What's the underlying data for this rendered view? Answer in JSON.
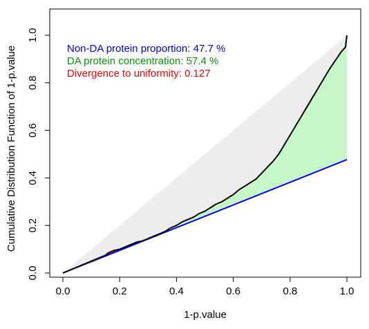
{
  "chart_data": {
    "type": "line",
    "xlabel": "1-p.value",
    "ylabel": "Cumulative Distribution Function of 1-p.value",
    "xlim": [
      0,
      1
    ],
    "ylim": [
      0,
      1
    ],
    "x_ticks": [
      "0.0",
      "0.2",
      "0.4",
      "0.6",
      "0.8",
      "1.0"
    ],
    "y_ticks": [
      "0.0",
      "0.2",
      "0.4",
      "0.6",
      "0.8",
      "1.0"
    ],
    "annotations": [
      {
        "text": "Non-DA protein proportion:  47.7 %",
        "color": "#0000ff"
      },
      {
        "text": "DA protein concentration:  57.4 %",
        "color": "#009900"
      },
      {
        "text": "Divergence to uniformity:  0.127",
        "color": "#ff0000"
      }
    ],
    "non_da_proportion": 0.477,
    "series": [
      {
        "color": "#000000",
        "x": [
          0.0,
          0.02,
          0.05,
          0.08,
          0.1,
          0.12,
          0.14,
          0.15,
          0.16,
          0.18,
          0.2,
          0.22,
          0.24,
          0.26,
          0.28,
          0.3,
          0.32,
          0.34,
          0.36,
          0.38,
          0.4,
          0.42,
          0.44,
          0.46,
          0.48,
          0.5,
          0.52,
          0.54,
          0.56,
          0.58,
          0.6,
          0.62,
          0.64,
          0.66,
          0.68,
          0.7,
          0.72,
          0.74,
          0.76,
          0.78,
          0.8,
          0.82,
          0.84,
          0.86,
          0.88,
          0.9,
          0.92,
          0.94,
          0.96,
          0.98,
          0.995,
          1.0
        ],
        "y": [
          0.0,
          0.01,
          0.025,
          0.04,
          0.05,
          0.06,
          0.07,
          0.075,
          0.085,
          0.095,
          0.1,
          0.11,
          0.12,
          0.13,
          0.135,
          0.145,
          0.155,
          0.165,
          0.175,
          0.19,
          0.2,
          0.215,
          0.225,
          0.235,
          0.25,
          0.26,
          0.275,
          0.29,
          0.3,
          0.315,
          0.33,
          0.35,
          0.365,
          0.38,
          0.395,
          0.42,
          0.445,
          0.47,
          0.5,
          0.54,
          0.58,
          0.62,
          0.66,
          0.7,
          0.74,
          0.78,
          0.82,
          0.86,
          0.895,
          0.93,
          0.95,
          1.0
        ]
      },
      {
        "color": "#0000ff",
        "x": [
          0,
          1
        ],
        "y": [
          0,
          0.477
        ]
      }
    ],
    "divergence_region": {
      "color": "#ff0000",
      "x_from": 0.15,
      "x_to": 0.27
    },
    "da_region_color": "#c6f7c6",
    "uniform_region_color": "#ededed"
  }
}
